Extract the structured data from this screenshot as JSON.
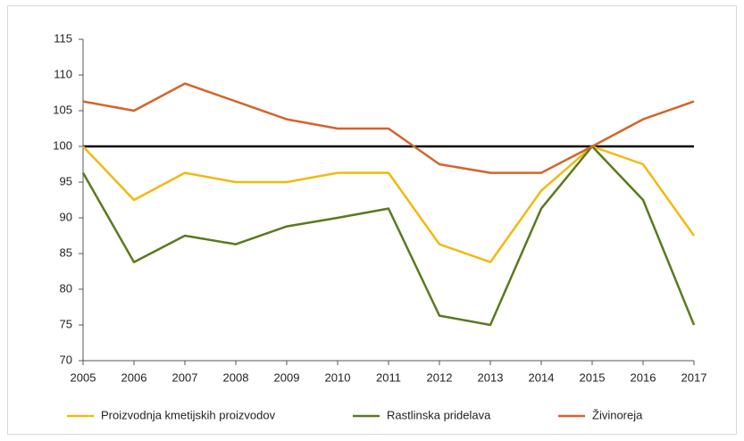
{
  "chart_data": {
    "type": "line",
    "categories": [
      "2005",
      "2006",
      "2007",
      "2008",
      "2009",
      "2010",
      "2011",
      "2012",
      "2013",
      "2014",
      "2015",
      "2016",
      "2017"
    ],
    "series": [
      {
        "name": "Proizvodnja kmetijskih proizvodov",
        "color": "#f2b90f",
        "values": [
          100,
          92.5,
          96.3,
          95,
          95,
          96.3,
          96.3,
          86.3,
          83.8,
          93.8,
          100,
          97.5,
          87.5
        ]
      },
      {
        "name": "Rastlinska pridelava",
        "color": "#5a7a1e",
        "values": [
          96.3,
          83.8,
          87.5,
          86.3,
          88.8,
          90,
          91.3,
          76.3,
          75,
          91.3,
          100,
          92.5,
          75
        ]
      },
      {
        "name": "Živinoreja",
        "color": "#d4642a",
        "values": [
          106.3,
          105,
          108.8,
          106.3,
          103.8,
          102.5,
          102.5,
          97.5,
          96.3,
          96.3,
          100,
          103.8,
          106.3
        ]
      }
    ],
    "reference_line": 100,
    "ylim": [
      70,
      115
    ],
    "yticks": [
      70,
      75,
      80,
      85,
      90,
      95,
      100,
      105,
      110,
      115
    ],
    "grid": false,
    "legend": "bottom"
  }
}
